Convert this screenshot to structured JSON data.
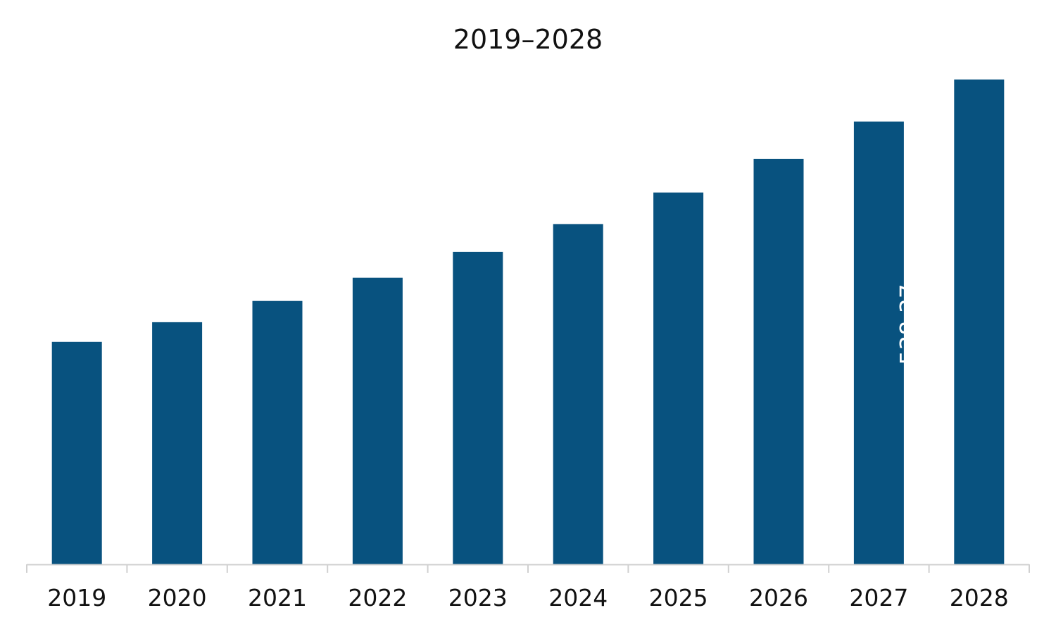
{
  "colors": {
    "bar": "#08527f",
    "axis": "#d0d0d0",
    "text": "#111111",
    "data_label": "#ffffff"
  },
  "chart_data": {
    "type": "bar",
    "title": "2019–2028",
    "xlabel": "",
    "ylabel": "",
    "categories": [
      "2019",
      "2020",
      "2021",
      "2022",
      "2023",
      "2024",
      "2025",
      "2026",
      "2027",
      "2028"
    ],
    "values": [
      270.5,
      294.4,
      320.2,
      348.4,
      379.9,
      413.7,
      452.0,
      492.8,
      538.37,
      589.4
    ],
    "data_labels": [
      null,
      null,
      null,
      null,
      null,
      null,
      null,
      null,
      "538.37",
      null
    ],
    "ylim": [
      0,
      589.4
    ],
    "grid": false,
    "legend": "none"
  }
}
